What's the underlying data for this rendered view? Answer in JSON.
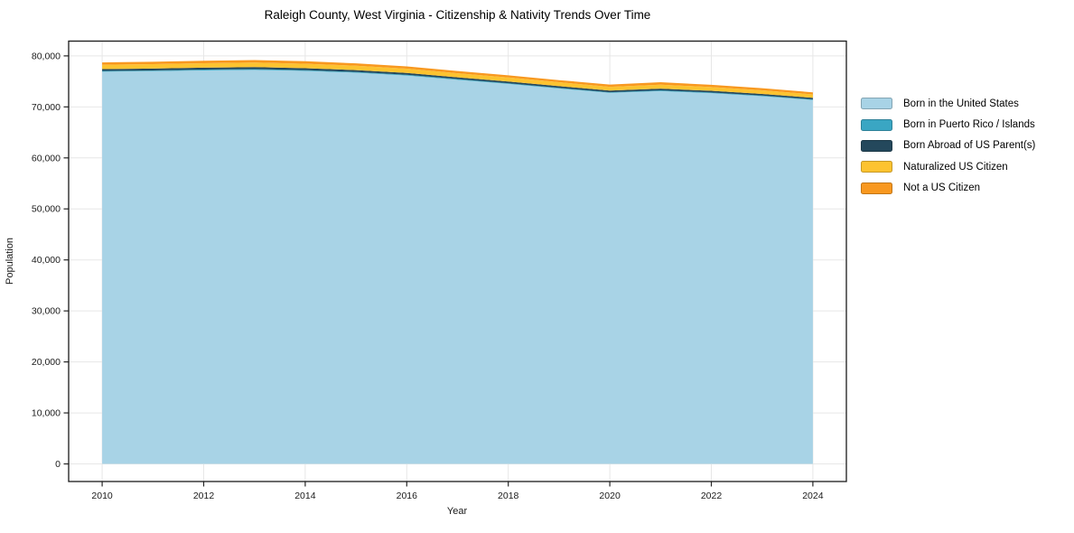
{
  "figure": {
    "title": "Raleigh County, West Virginia - Citizenship & Nativity Trends Over Time"
  },
  "chart_data": {
    "type": "area",
    "stacked": true,
    "title": "Raleigh County, West Virginia - Citizenship & Nativity Trends Over Time",
    "xlabel": "Year",
    "ylabel": "Population",
    "x": [
      2010,
      2011,
      2012,
      2013,
      2014,
      2015,
      2016,
      2017,
      2018,
      2019,
      2020,
      2021,
      2022,
      2023,
      2024
    ],
    "series": [
      {
        "name": "Born in the United States",
        "color": "#a8d3e6",
        "values": [
          76900,
          77000,
          77150,
          77250,
          77050,
          76700,
          76150,
          75300,
          74500,
          73600,
          72750,
          73100,
          72700,
          72100,
          71350
        ]
      },
      {
        "name": "Born in Puerto Rico / Islands",
        "color": "#3aa6c3",
        "values": [
          150,
          150,
          160,
          160,
          160,
          150,
          150,
          150,
          140,
          140,
          130,
          140,
          130,
          130,
          130
        ]
      },
      {
        "name": "Born Abroad of US Parent(s)",
        "color": "#24485c",
        "values": [
          360,
          370,
          380,
          390,
          380,
          370,
          360,
          350,
          340,
          330,
          320,
          340,
          320,
          310,
          300
        ]
      },
      {
        "name": "Naturalized US Citizen",
        "color": "#fdc330",
        "values": [
          850,
          860,
          870,
          890,
          870,
          850,
          830,
          800,
          780,
          760,
          740,
          780,
          740,
          710,
          680
        ]
      },
      {
        "name": "Not a US Citizen",
        "color": "#f8981f",
        "values": [
          460,
          470,
          490,
          500,
          490,
          470,
          460,
          440,
          430,
          420,
          440,
          480,
          440,
          410,
          390
        ]
      }
    ],
    "x_ticks": [
      2010,
      2012,
      2014,
      2016,
      2018,
      2020,
      2022,
      2024
    ],
    "y_ticks": [
      0,
      10000,
      20000,
      30000,
      40000,
      50000,
      60000,
      70000,
      80000
    ],
    "y_tick_labels": [
      "0",
      "10,000",
      "20,000",
      "30,000",
      "40,000",
      "50,000",
      "60,000",
      "70,000",
      "80,000"
    ],
    "xlim": [
      2009.34,
      2024.66
    ],
    "ylim": [
      -3450,
      82900
    ],
    "baseline": 0,
    "grid": true,
    "grid_color": "#e7e7e7",
    "legend_position": "right-outside"
  },
  "styles": {
    "background": "#ffffff",
    "spine_color": "#1a1a1a",
    "tick_color": "#262626",
    "text_color": "#1a1a1a"
  }
}
